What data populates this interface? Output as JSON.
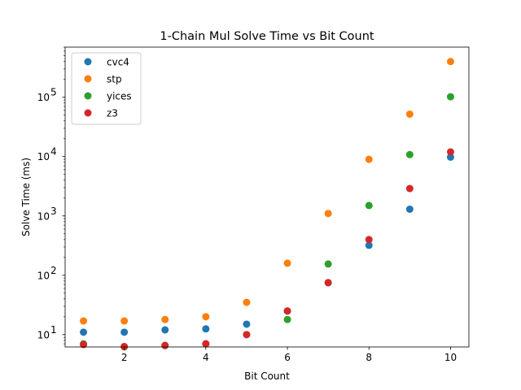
{
  "chart_data": {
    "type": "scatter",
    "title": "1-Chain Mul Solve Time vs Bit Count",
    "xlabel": "Bit Count",
    "ylabel": "Solve Time (ms)",
    "yscale": "log",
    "xlim": [
      0.55,
      10.45
    ],
    "ylim": [
      6.2,
      700000
    ],
    "xticks": [
      2,
      4,
      6,
      8,
      10
    ],
    "yticks": [
      {
        "value": 10,
        "base": "10",
        "exp": "1"
      },
      {
        "value": 100,
        "base": "10",
        "exp": "2"
      },
      {
        "value": 1000,
        "base": "10",
        "exp": "3"
      },
      {
        "value": 10000,
        "base": "10",
        "exp": "4"
      },
      {
        "value": 100000,
        "base": "10",
        "exp": "5"
      }
    ],
    "legend_position": "top-left",
    "grid": false,
    "series": [
      {
        "name": "cvc4",
        "color": "#1f77b4",
        "x": [
          1,
          2,
          3,
          4,
          5,
          6,
          7,
          8,
          9,
          10
        ],
        "y": [
          11,
          11,
          12,
          12.5,
          15,
          25,
          75,
          320,
          1300,
          9800
        ]
      },
      {
        "name": "stp",
        "color": "#ff7f0e",
        "x": [
          1,
          2,
          3,
          4,
          5,
          6,
          7,
          8,
          9,
          10
        ],
        "y": [
          17,
          17,
          18,
          20,
          35,
          160,
          1100,
          9000,
          52000,
          400000
        ]
      },
      {
        "name": "yices",
        "color": "#2ca02c",
        "x": [
          1,
          2,
          3,
          4,
          5,
          6,
          7,
          8,
          9,
          10
        ],
        "y": [
          7,
          6.2,
          6.5,
          7,
          10,
          18,
          155,
          1500,
          10800,
          102000
        ]
      },
      {
        "name": "z3",
        "color": "#d62728",
        "x": [
          1,
          2,
          3,
          4,
          5,
          6,
          7,
          8,
          9,
          10
        ],
        "y": [
          6.8,
          6.3,
          6.6,
          7,
          10,
          25,
          75,
          400,
          2900,
          12000
        ]
      }
    ]
  }
}
